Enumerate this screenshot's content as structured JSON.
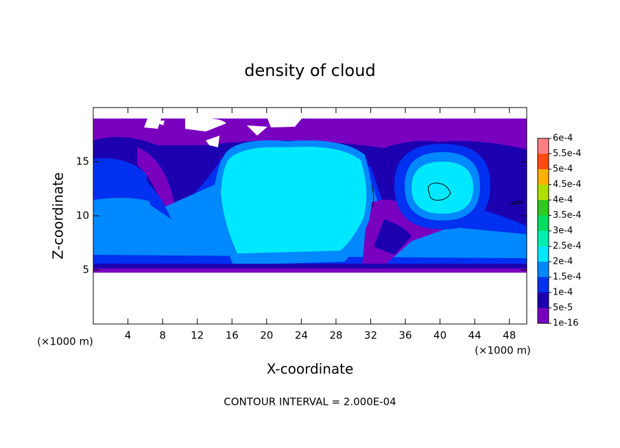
{
  "chart_data": {
    "type": "contour",
    "title": "density of cloud",
    "xlabel": "X-coordinate",
    "ylabel": "Z-coordinate",
    "xunit": "(×1000 m)",
    "yunit": "(×1000 m)",
    "annotation": "CONTOUR INTERVAL = 2.000E-04",
    "xlim": [
      0,
      50
    ],
    "xticks": [
      4,
      8,
      12,
      16,
      20,
      24,
      28,
      32,
      36,
      40,
      44,
      48
    ],
    "ylim": [
      0,
      20
    ],
    "yticks": [
      5,
      10,
      15
    ],
    "colorbar": {
      "levels": [
        {
          "value": 1e-16,
          "label": "1e-16"
        },
        {
          "value": 5e-05,
          "label": "5e-5"
        },
        {
          "value": 0.0001,
          "label": "1e-4"
        },
        {
          "value": 0.00015,
          "label": "1.5e-4"
        },
        {
          "value": 0.0002,
          "label": "2e-4"
        },
        {
          "value": 0.00025,
          "label": "2.5e-4"
        },
        {
          "value": 0.0003,
          "label": "3e-4"
        },
        {
          "value": 0.00035,
          "label": "3.5e-4"
        },
        {
          "value": 0.0004,
          "label": "4e-4"
        },
        {
          "value": 0.00045,
          "label": "4.5e-4"
        },
        {
          "value": 0.0005,
          "label": "5e-4"
        },
        {
          "value": 0.00055,
          "label": "5.5e-4"
        },
        {
          "value": 0.0006,
          "label": "6e-4"
        }
      ],
      "colors": [
        "#7a00c0",
        "#1c00b0",
        "#0030f0",
        "#0088ff",
        "#00e8ff",
        "#00f0b0",
        "#00e060",
        "#30c820",
        "#b0e000",
        "#ffb000",
        "#ff4a10",
        "#ff8080"
      ]
    }
  }
}
